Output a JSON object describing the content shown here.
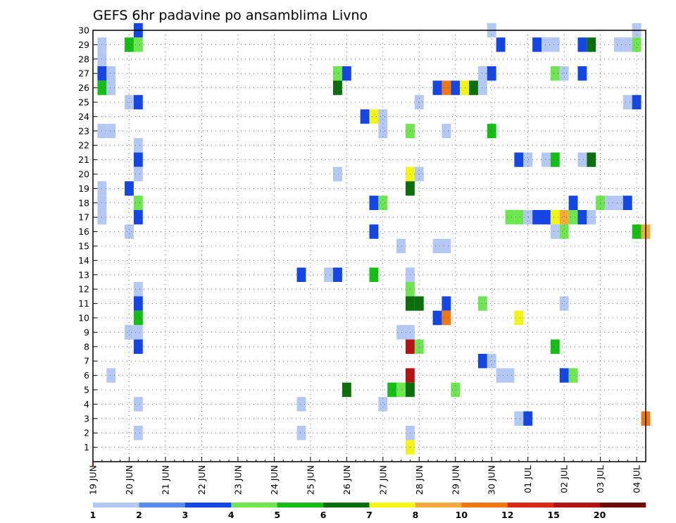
{
  "chart_data": {
    "type": "heatmap",
    "title": "GEFS 6hr padavine po ansamblima Livno",
    "x_ticks": [
      "19 JUN",
      "20 JUN",
      "21 JUN",
      "22 JUN",
      "23 JUN",
      "24 JUN",
      "25 JUN",
      "26 JUN",
      "27 JUN",
      "28 JUN",
      "29 JUN",
      "30 JUN",
      "01 JUL",
      "02 JUL",
      "03 JUL",
      "04 JUL"
    ],
    "y_ticks": [
      1,
      2,
      3,
      4,
      5,
      6,
      7,
      8,
      9,
      10,
      11,
      12,
      13,
      14,
      15,
      16,
      17,
      18,
      19,
      20,
      21,
      22,
      23,
      24,
      25,
      26,
      27,
      28,
      29,
      30
    ],
    "time_step_hours": 6,
    "grid": true,
    "legend": {
      "placement": "bottom",
      "labels": [
        "1",
        "2",
        "3",
        "4",
        "5",
        "6",
        "7",
        "8",
        "10",
        "12",
        "15",
        "20"
      ],
      "colors": [
        "#b4c8f5",
        "#5a8cf0",
        "#1446e6",
        "#6ee650",
        "#14be14",
        "#0a6e0a",
        "#f5f514",
        "#f5aa3c",
        "#f07814",
        "#dc2814",
        "#b41414",
        "#6e0a0a"
      ]
    },
    "cells": [
      {
        "m": 30,
        "s": [
          {
            "x": 5,
            "v": 3
          },
          {
            "x": 44,
            "v": 1
          },
          {
            "x": 60,
            "v": 1
          }
        ]
      },
      {
        "m": 29,
        "s": [
          {
            "x": 1,
            "v": 1
          },
          {
            "x": 4,
            "v": 5
          },
          {
            "x": 5,
            "v": 4
          },
          {
            "x": 45,
            "v": 3
          },
          {
            "x": 49,
            "v": 3
          },
          {
            "x": 50,
            "v": 1
          },
          {
            "x": 51,
            "v": 1
          },
          {
            "x": 54,
            "v": 3
          },
          {
            "x": 55,
            "v": 6
          },
          {
            "x": 58,
            "v": 1
          },
          {
            "x": 59,
            "v": 1
          },
          {
            "x": 60,
            "v": 4
          }
        ]
      },
      {
        "m": 28,
        "s": [
          {
            "x": 1,
            "v": 1
          }
        ]
      },
      {
        "m": 27,
        "s": [
          {
            "x": 1,
            "v": 3
          },
          {
            "x": 2,
            "v": 1
          },
          {
            "x": 27,
            "v": 4
          },
          {
            "x": 28,
            "v": 3
          },
          {
            "x": 43,
            "v": 1
          },
          {
            "x": 44,
            "v": 3
          },
          {
            "x": 51,
            "v": 4
          },
          {
            "x": 52,
            "v": 1
          },
          {
            "x": 54,
            "v": 3
          }
        ]
      },
      {
        "m": 26,
        "s": [
          {
            "x": 1,
            "v": 5
          },
          {
            "x": 2,
            "v": 1
          },
          {
            "x": 27,
            "v": 6
          },
          {
            "x": 38,
            "v": 3
          },
          {
            "x": 39,
            "v": 10
          },
          {
            "x": 40,
            "v": 3
          },
          {
            "x": 41,
            "v": 7
          },
          {
            "x": 42,
            "v": 6
          },
          {
            "x": 43,
            "v": 1
          }
        ]
      },
      {
        "m": 25,
        "s": [
          {
            "x": 4,
            "v": 1
          },
          {
            "x": 5,
            "v": 3
          },
          {
            "x": 36,
            "v": 1
          },
          {
            "x": 59,
            "v": 1
          },
          {
            "x": 60,
            "v": 3
          }
        ]
      },
      {
        "m": 24,
        "s": [
          {
            "x": 30,
            "v": 3
          },
          {
            "x": 31,
            "v": 7
          },
          {
            "x": 32,
            "v": 1
          }
        ]
      },
      {
        "m": 23,
        "s": [
          {
            "x": 1,
            "v": 1
          },
          {
            "x": 2,
            "v": 1
          },
          {
            "x": 32,
            "v": 1
          },
          {
            "x": 35,
            "v": 4
          },
          {
            "x": 39,
            "v": 1
          },
          {
            "x": 44,
            "v": 5
          }
        ]
      },
      {
        "m": 22,
        "s": [
          {
            "x": 5,
            "v": 1
          }
        ]
      },
      {
        "m": 21,
        "s": [
          {
            "x": 5,
            "v": 3
          },
          {
            "x": 47,
            "v": 3
          },
          {
            "x": 48,
            "v": 1
          },
          {
            "x": 50,
            "v": 1
          },
          {
            "x": 51,
            "v": 5
          },
          {
            "x": 54,
            "v": 1
          },
          {
            "x": 55,
            "v": 6
          }
        ]
      },
      {
        "m": 20,
        "s": [
          {
            "x": 5,
            "v": 1
          },
          {
            "x": 27,
            "v": 1
          },
          {
            "x": 35,
            "v": 7
          },
          {
            "x": 36,
            "v": 1
          }
        ]
      },
      {
        "m": 19,
        "s": [
          {
            "x": 1,
            "v": 1
          },
          {
            "x": 4,
            "v": 3
          },
          {
            "x": 35,
            "v": 6
          }
        ]
      },
      {
        "m": 18,
        "s": [
          {
            "x": 1,
            "v": 1
          },
          {
            "x": 5,
            "v": 4
          },
          {
            "x": 31,
            "v": 3
          },
          {
            "x": 32,
            "v": 4
          },
          {
            "x": 53,
            "v": 3
          },
          {
            "x": 56,
            "v": 4
          },
          {
            "x": 57,
            "v": 1
          },
          {
            "x": 58,
            "v": 1
          },
          {
            "x": 59,
            "v": 3
          }
        ]
      },
      {
        "m": 17,
        "s": [
          {
            "x": 1,
            "v": 1
          },
          {
            "x": 5,
            "v": 3
          },
          {
            "x": 46,
            "v": 4
          },
          {
            "x": 47,
            "v": 4
          },
          {
            "x": 48,
            "v": 1
          },
          {
            "x": 49,
            "v": 3
          },
          {
            "x": 50,
            "v": 3
          },
          {
            "x": 51,
            "v": 7
          },
          {
            "x": 52,
            "v": 8
          },
          {
            "x": 53,
            "v": 4
          },
          {
            "x": 54,
            "v": 3
          },
          {
            "x": 55,
            "v": 1
          }
        ]
      },
      {
        "m": 16,
        "s": [
          {
            "x": 4,
            "v": 1
          },
          {
            "x": 31,
            "v": 3
          },
          {
            "x": 51,
            "v": 1
          },
          {
            "x": 52,
            "v": 4
          },
          {
            "x": 60,
            "v": 5
          },
          {
            "x": 61,
            "v": 8
          }
        ]
      },
      {
        "m": 15,
        "s": [
          {
            "x": 34,
            "v": 1
          },
          {
            "x": 38,
            "v": 1
          },
          {
            "x": 39,
            "v": 1
          }
        ]
      },
      {
        "m": 13,
        "s": [
          {
            "x": 23,
            "v": 3
          },
          {
            "x": 26,
            "v": 1
          },
          {
            "x": 27,
            "v": 3
          },
          {
            "x": 31,
            "v": 5
          },
          {
            "x": 35,
            "v": 1
          }
        ]
      },
      {
        "m": 12,
        "s": [
          {
            "x": 5,
            "v": 1
          },
          {
            "x": 35,
            "v": 4
          }
        ]
      },
      {
        "m": 11,
        "s": [
          {
            "x": 5,
            "v": 3
          },
          {
            "x": 35,
            "v": 6
          },
          {
            "x": 36,
            "v": 6
          },
          {
            "x": 39,
            "v": 3
          },
          {
            "x": 43,
            "v": 4
          },
          {
            "x": 52,
            "v": 1
          }
        ]
      },
      {
        "m": 10,
        "s": [
          {
            "x": 5,
            "v": 5
          },
          {
            "x": 38,
            "v": 3
          },
          {
            "x": 39,
            "v": 10
          },
          {
            "x": 47,
            "v": 7
          }
        ]
      },
      {
        "m": 9,
        "s": [
          {
            "x": 4,
            "v": 1
          },
          {
            "x": 5,
            "v": 1
          },
          {
            "x": 34,
            "v": 1
          },
          {
            "x": 35,
            "v": 1
          }
        ]
      },
      {
        "m": 8,
        "s": [
          {
            "x": 5,
            "v": 3
          },
          {
            "x": 35,
            "v": 20
          },
          {
            "x": 36,
            "v": 4
          },
          {
            "x": 51,
            "v": 5
          }
        ]
      },
      {
        "m": 7,
        "s": [
          {
            "x": 43,
            "v": 3
          },
          {
            "x": 44,
            "v": 1
          }
        ]
      },
      {
        "m": 6,
        "s": [
          {
            "x": 2,
            "v": 1
          },
          {
            "x": 35,
            "v": 20
          },
          {
            "x": 45,
            "v": 1
          },
          {
            "x": 46,
            "v": 1
          },
          {
            "x": 52,
            "v": 3
          },
          {
            "x": 53,
            "v": 4
          }
        ]
      },
      {
        "m": 5,
        "s": [
          {
            "x": 28,
            "v": 6
          },
          {
            "x": 33,
            "v": 5
          },
          {
            "x": 34,
            "v": 4
          },
          {
            "x": 35,
            "v": 6
          },
          {
            "x": 40,
            "v": 4
          }
        ]
      },
      {
        "m": 4,
        "s": [
          {
            "x": 5,
            "v": 1
          },
          {
            "x": 23,
            "v": 1
          },
          {
            "x": 32,
            "v": 1
          }
        ]
      },
      {
        "m": 3,
        "s": [
          {
            "x": 47,
            "v": 1
          },
          {
            "x": 48,
            "v": 3
          },
          {
            "x": 61,
            "v": 10
          }
        ]
      },
      {
        "m": 2,
        "s": [
          {
            "x": 5,
            "v": 1
          },
          {
            "x": 23,
            "v": 1
          },
          {
            "x": 35,
            "v": 1
          }
        ]
      },
      {
        "m": 1,
        "s": [
          {
            "x": 35,
            "v": 7
          }
        ]
      }
    ]
  }
}
